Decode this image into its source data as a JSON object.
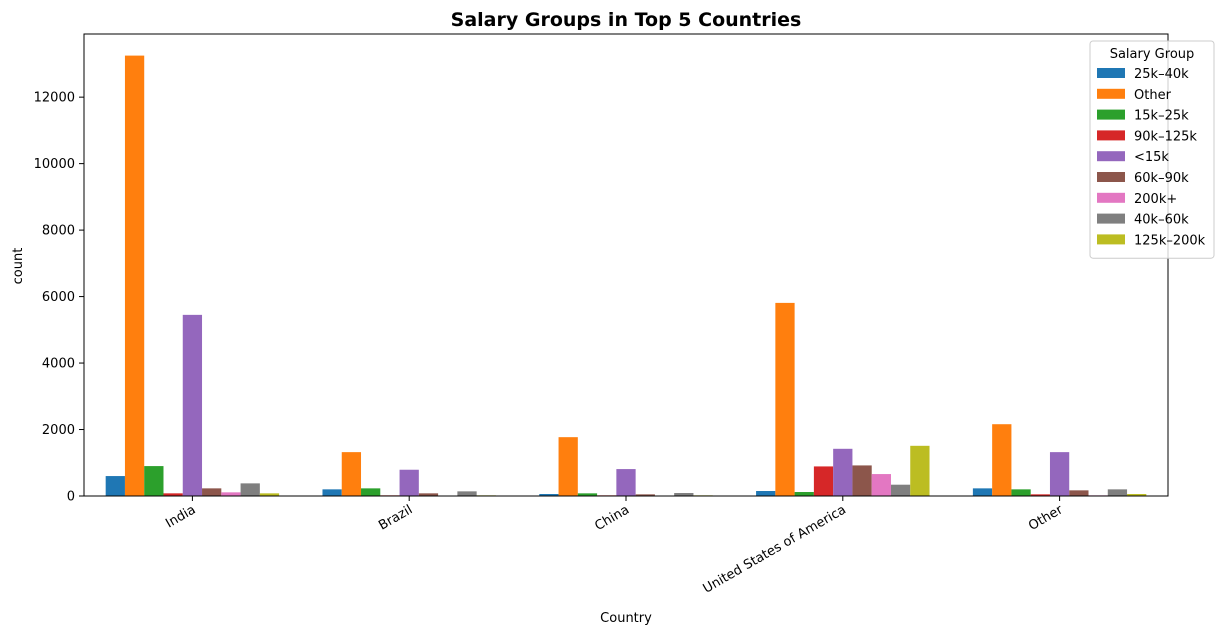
{
  "chart_data": {
    "type": "bar",
    "title": "Salary Groups in Top 5 Countries",
    "xlabel": "Country",
    "ylabel": "count",
    "ylim": [
      0,
      13900
    ],
    "yticks": [
      0,
      2000,
      4000,
      6000,
      8000,
      10000,
      12000
    ],
    "categories": [
      "India",
      "Brazil",
      "China",
      "United States of America",
      "Other"
    ],
    "legend_title": "Salary Group",
    "legend_position": "top-right",
    "series": [
      {
        "name": "25k–40k",
        "color": "#1f77b4",
        "values": [
          600,
          200,
          60,
          150,
          230
        ]
      },
      {
        "name": "Other",
        "color": "#ff7f0e",
        "values": [
          13250,
          1320,
          1770,
          5810,
          2160
        ]
      },
      {
        "name": "15k–25k",
        "color": "#2ca02c",
        "values": [
          900,
          230,
          80,
          120,
          200
        ]
      },
      {
        "name": "90k–125k",
        "color": "#d62728",
        "values": [
          80,
          20,
          20,
          890,
          50
        ]
      },
      {
        "name": "<15k",
        "color": "#9467bd",
        "values": [
          5450,
          790,
          810,
          1420,
          1320
        ]
      },
      {
        "name": "60k–90k",
        "color": "#8c564b",
        "values": [
          230,
          80,
          50,
          920,
          170
        ]
      },
      {
        "name": "200k+",
        "color": "#e377c2",
        "values": [
          110,
          15,
          15,
          660,
          20
        ]
      },
      {
        "name": "40k–60k",
        "color": "#7f7f7f",
        "values": [
          380,
          140,
          90,
          340,
          200
        ]
      },
      {
        "name": "125k–200k",
        "color": "#bcbd22",
        "values": [
          80,
          20,
          20,
          1510,
          60
        ]
      }
    ]
  }
}
